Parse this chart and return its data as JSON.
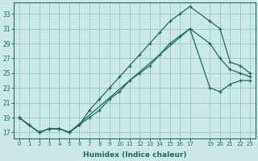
{
  "xlabel": "Humidex (Indice chaleur)",
  "bg_color": "#cce8e8",
  "grid_color": "#99cccc",
  "line_color": "#1a6b5a",
  "x_ticks_pos": [
    0,
    1,
    2,
    3,
    4,
    5,
    6,
    7,
    8,
    9,
    10,
    11,
    12,
    13,
    14,
    15,
    16,
    17,
    19,
    20,
    21,
    22,
    23
  ],
  "x_tick_labels": [
    "0",
    "1",
    "2",
    "3",
    "4",
    "5",
    "6",
    "7",
    "8",
    "9",
    "10",
    "11",
    "12",
    "13",
    "14",
    "15",
    "16",
    "17",
    "19",
    "20",
    "21",
    "22",
    "23"
  ],
  "y_ticks": [
    17,
    19,
    21,
    23,
    25,
    27,
    29,
    31,
    33
  ],
  "ylim": [
    16.2,
    34.5
  ],
  "xlim": [
    -0.5,
    23.5
  ],
  "line1_x": [
    0,
    1,
    2,
    3,
    4,
    5,
    6,
    7,
    8,
    9,
    10,
    11,
    12,
    13,
    14,
    15,
    16,
    17,
    19,
    20,
    21,
    22,
    23
  ],
  "line1_y": [
    19,
    18,
    17,
    17.5,
    17.5,
    17,
    18,
    19,
    20,
    21.5,
    22.5,
    24,
    25,
    26,
    27.5,
    29,
    30,
    31,
    29,
    27,
    25.5,
    25,
    24.5
  ],
  "line2_x": [
    0,
    1,
    2,
    3,
    4,
    5,
    6,
    7,
    8,
    9,
    10,
    11,
    12,
    13,
    14,
    15,
    16,
    17,
    19,
    20,
    21,
    22,
    23
  ],
  "line2_y": [
    19,
    18,
    17,
    17.5,
    17.5,
    17,
    18,
    20,
    21.5,
    23,
    24.5,
    26,
    27.5,
    29,
    30.5,
    32,
    33,
    34,
    32,
    31,
    26.5,
    26,
    25
  ],
  "line3_x": [
    0,
    2,
    3,
    4,
    5,
    17,
    19,
    20,
    21,
    22,
    23
  ],
  "line3_y": [
    19,
    17,
    17.5,
    17.5,
    17,
    31,
    23,
    22.5,
    23.5,
    24,
    24
  ]
}
